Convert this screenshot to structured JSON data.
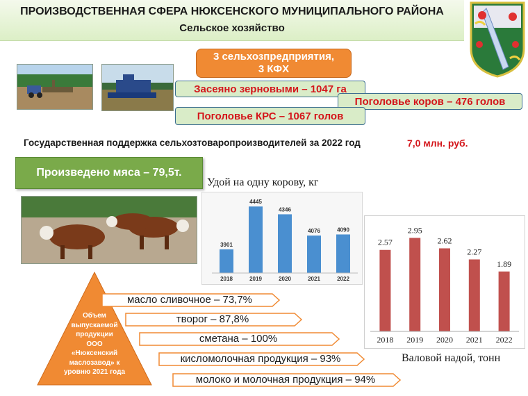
{
  "header": {
    "title": "ПРОИЗВОДСТВЕННАЯ СФЕРА НЮКСЕНСКОГО МУНИЦИПАЛЬНОГО РАЙОНА",
    "subtitle": "Сельское хозяйство"
  },
  "facts": {
    "enterprises_line1": "3 сельхозпредприятия,",
    "enterprises_line2": "3 КФХ",
    "grain": "Засеяно зерновыми – 1047 га",
    "cows": "Поголовье коров – 476 голов",
    "cattle": "Поголовье КРС – 1067 голов"
  },
  "support": {
    "text": "Государственная поддержка сельхозтоваропроизводителей за 2022 год",
    "value": "7,0 млн. руб."
  },
  "meat": {
    "label": "Произведено мяса – 79,5т."
  },
  "chart_data": [
    {
      "type": "bar",
      "title": "Удой на одну корову, кг",
      "categories": [
        "2018",
        "2019",
        "2020",
        "2021",
        "2022"
      ],
      "values": [
        3901,
        4445,
        4346,
        4076,
        4090
      ],
      "ylim": [
        3600,
        4500
      ],
      "color": "#4a8fd0"
    },
    {
      "type": "bar",
      "title": "Валовой надой, тонн",
      "categories": [
        "2018",
        "2019",
        "2020",
        "2021",
        "2022"
      ],
      "values": [
        2.57,
        2.95,
        2.62,
        2.27,
        1.89
      ],
      "value_labels": [
        "2.57",
        "2.95",
        "2.62",
        "2.27",
        "1.89"
      ],
      "ylim": [
        0,
        3.2
      ],
      "color": "#c0504d"
    }
  ],
  "dairy": {
    "label_lines": [
      "Объем",
      "выпускаемой",
      "продукции",
      "ООО",
      "«Нюксенский",
      "маслозавод» к",
      "уровню 2021 года"
    ],
    "products": [
      "масло сливочное – 73,7%",
      "творог – 87,8%",
      "сметана – 100%",
      "кисломолочная продукция – 93%",
      "молоко и молочная продукция – 94%"
    ]
  },
  "colors": {
    "orange": "#f08a33",
    "green": "#7aaa4a",
    "red_text": "#d4161b",
    "pill_fill": "#d9ecc8"
  }
}
